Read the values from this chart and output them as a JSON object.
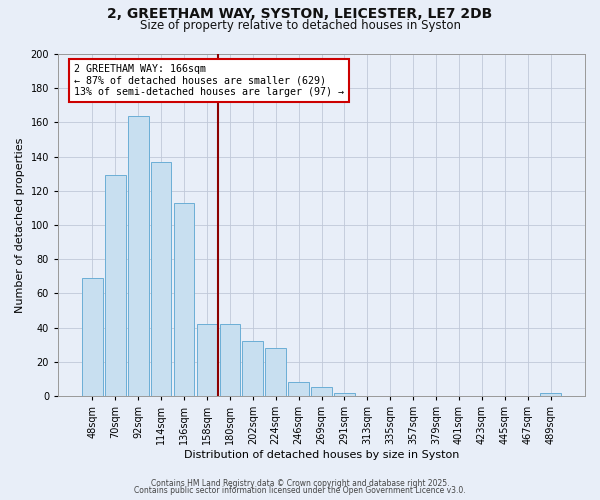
{
  "title1": "2, GREETHAM WAY, SYSTON, LEICESTER, LE7 2DB",
  "title2": "Size of property relative to detached houses in Syston",
  "xlabel": "Distribution of detached houses by size in Syston",
  "ylabel": "Number of detached properties",
  "bar_labels": [
    "48sqm",
    "70sqm",
    "92sqm",
    "114sqm",
    "136sqm",
    "158sqm",
    "180sqm",
    "202sqm",
    "224sqm",
    "246sqm",
    "269sqm",
    "291sqm",
    "313sqm",
    "335sqm",
    "357sqm",
    "379sqm",
    "401sqm",
    "423sqm",
    "445sqm",
    "467sqm",
    "489sqm"
  ],
  "bar_values": [
    69,
    129,
    164,
    137,
    113,
    42,
    42,
    32,
    28,
    8,
    5,
    2,
    0,
    0,
    0,
    0,
    0,
    0,
    0,
    0,
    2
  ],
  "bar_color": "#c8dff0",
  "bar_edge_color": "#6baed6",
  "ylim": [
    0,
    200
  ],
  "yticks": [
    0,
    20,
    40,
    60,
    80,
    100,
    120,
    140,
    160,
    180,
    200
  ],
  "vline_x": 5.5,
  "vline_color": "#8b0000",
  "annotation_title": "2 GREETHAM WAY: 166sqm",
  "annotation_line1": "← 87% of detached houses are smaller (629)",
  "annotation_line2": "13% of semi-detached houses are larger (97) →",
  "annotation_box_color": "#ffffff",
  "annotation_box_edge": "#cc0000",
  "footer1": "Contains HM Land Registry data © Crown copyright and database right 2025.",
  "footer2": "Contains public sector information licensed under the Open Government Licence v3.0.",
  "bg_color": "#e8eef8"
}
